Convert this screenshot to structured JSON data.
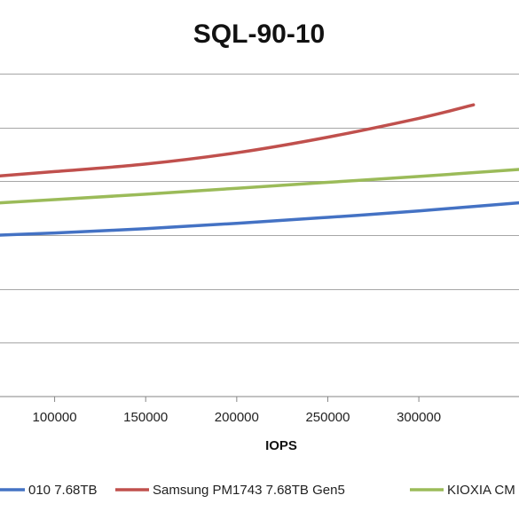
{
  "chart_data": {
    "type": "line",
    "title": "SQL-90-10",
    "xlabel": "IOPS",
    "ylabel": "",
    "x_ticks": [
      "100000",
      "150000",
      "200000",
      "250000",
      "300000"
    ],
    "xlim": [
      70000,
      355000
    ],
    "ylim": [
      0,
      6
    ],
    "grid": true,
    "legend_position": "bottom",
    "series": [
      {
        "name": "010 7.68TB",
        "color": "#4472C4",
        "x": [
          70000,
          100000,
          150000,
          200000,
          250000,
          300000,
          355000
        ],
        "y": [
          3.0,
          3.04,
          3.12,
          3.22,
          3.33,
          3.45,
          3.6
        ]
      },
      {
        "name": "Samsung PM1743 7.68TB Gen5",
        "color": "#C0504D",
        "x": [
          70000,
          100000,
          150000,
          200000,
          250000,
          300000,
          330000
        ],
        "y": [
          4.1,
          4.18,
          4.32,
          4.53,
          4.82,
          5.17,
          5.42
        ]
      },
      {
        "name": "KIOXIA CM",
        "color": "#9BBB59",
        "x": [
          70000,
          100000,
          150000,
          200000,
          250000,
          300000,
          355000
        ],
        "y": [
          3.6,
          3.66,
          3.76,
          3.87,
          3.98,
          4.09,
          4.22
        ]
      }
    ]
  }
}
